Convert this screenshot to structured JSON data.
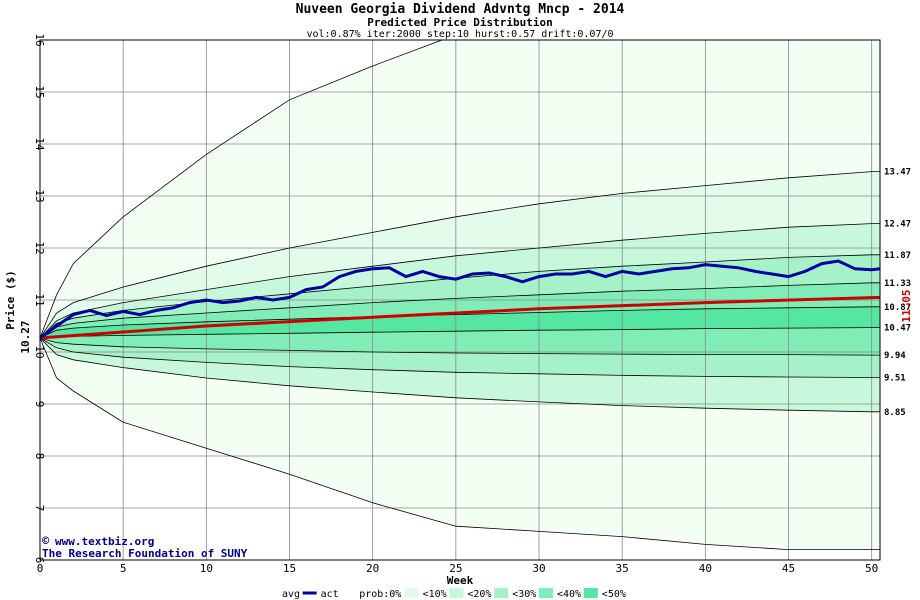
{
  "header": {
    "title": "Nuveen Georgia Dividend Advntg Mncp - 2014",
    "subtitle": "Predicted Price Distribution",
    "params": "vol:0.87% iter:2000 step:10 hurst:0.57 drift:0.07/0"
  },
  "credits": {
    "site": "www.textbiz.org",
    "org": "The Research Foundation of SUNY"
  },
  "colors": {
    "band0": "#f4fff4",
    "band10": "#e3fbea",
    "band20": "#c8f8dc",
    "band30": "#a6f2c8",
    "band40": "#80edb7",
    "band50": "#55e6a1",
    "act": "#0000a0",
    "avg": "#cc0000",
    "grid": "#888888"
  },
  "chart_data": {
    "type": "area",
    "xlabel": "Week",
    "ylabel": "Price ($)",
    "xlim": [
      0,
      50.5
    ],
    "ylim": [
      6,
      16
    ],
    "x_ticks": [
      0,
      5,
      10,
      15,
      20,
      25,
      30,
      35,
      40,
      45,
      50
    ],
    "y_ticks": [
      6,
      7,
      8,
      9,
      10,
      11,
      12,
      13,
      14,
      15,
      16
    ],
    "start_label": "10.27",
    "end_label": "11.05",
    "right_labels": [
      "13.47",
      "12.47",
      "11.87",
      "11.33",
      "10.87",
      "10.47",
      "9.94",
      "9.51",
      "8.85"
    ],
    "weeks": [
      0,
      1,
      2,
      5,
      10,
      15,
      20,
      25,
      30,
      35,
      40,
      45,
      50,
      50.5
    ],
    "bounds": [
      {
        "name": "upper_outer",
        "values": [
          10.27,
          11.1,
          11.7,
          12.6,
          13.8,
          14.85,
          15.5,
          16.1,
          16.5,
          16.8,
          17.0,
          17.2,
          17.4,
          17.4
        ]
      },
      {
        "name": "p10_upper",
        "values": [
          10.27,
          10.75,
          10.95,
          11.25,
          11.65,
          12.0,
          12.3,
          12.6,
          12.85,
          13.05,
          13.2,
          13.35,
          13.47,
          13.47
        ]
      },
      {
        "name": "p20_upper",
        "values": [
          10.27,
          10.6,
          10.75,
          10.95,
          11.2,
          11.45,
          11.65,
          11.85,
          12.0,
          12.15,
          12.28,
          12.4,
          12.47,
          12.47
        ]
      },
      {
        "name": "p30_upper",
        "values": [
          10.27,
          10.55,
          10.65,
          10.8,
          10.97,
          11.12,
          11.27,
          11.42,
          11.55,
          11.65,
          11.73,
          11.82,
          11.87,
          11.87
        ]
      },
      {
        "name": "p40_upper",
        "values": [
          10.27,
          10.48,
          10.55,
          10.65,
          10.75,
          10.85,
          10.95,
          11.03,
          11.1,
          11.17,
          11.22,
          11.28,
          11.33,
          11.33
        ]
      },
      {
        "name": "p50_upper",
        "values": [
          10.27,
          10.42,
          10.46,
          10.52,
          10.58,
          10.63,
          10.68,
          10.72,
          10.76,
          10.8,
          10.83,
          10.85,
          10.87,
          10.87
        ]
      },
      {
        "name": "p50_lower",
        "values": [
          10.27,
          10.3,
          10.3,
          10.32,
          10.34,
          10.36,
          10.38,
          10.4,
          10.42,
          10.43,
          10.45,
          10.46,
          10.47,
          10.47
        ]
      },
      {
        "name": "p40_lower",
        "values": [
          10.27,
          10.18,
          10.15,
          10.1,
          10.06,
          10.03,
          10.0,
          9.98,
          9.97,
          9.96,
          9.95,
          9.95,
          9.94,
          9.94
        ]
      },
      {
        "name": "p30_lower",
        "values": [
          10.27,
          10.08,
          10.0,
          9.9,
          9.8,
          9.72,
          9.66,
          9.61,
          9.58,
          9.55,
          9.53,
          9.52,
          9.51,
          9.51
        ]
      },
      {
        "name": "p20_lower",
        "values": [
          10.27,
          9.95,
          9.85,
          9.7,
          9.5,
          9.35,
          9.23,
          9.12,
          9.04,
          8.97,
          8.92,
          8.88,
          8.85,
          8.85
        ]
      },
      {
        "name": "lower_outer",
        "values": [
          10.27,
          9.5,
          9.25,
          8.65,
          8.15,
          7.65,
          7.1,
          6.65,
          6.55,
          6.45,
          6.3,
          6.2,
          6.2,
          6.2
        ]
      }
    ],
    "avg_line": {
      "name": "avg",
      "x": [
        0,
        10,
        20,
        30,
        40,
        50.5
      ],
      "y": [
        10.27,
        10.5,
        10.67,
        10.83,
        10.95,
        11.05
      ]
    },
    "act_line": {
      "name": "act",
      "x": [
        0,
        1,
        2,
        3,
        4,
        5,
        6,
        7,
        8,
        9,
        10,
        11,
        12,
        13,
        14,
        15,
        16,
        17,
        18,
        19,
        20,
        21,
        22,
        23,
        24,
        25,
        26,
        27,
        28,
        29,
        30,
        31,
        32,
        33,
        34,
        35,
        36,
        37,
        38,
        39,
        40,
        41,
        42,
        43,
        44,
        45,
        46,
        47,
        48,
        49,
        50,
        50.5
      ],
      "y": [
        10.27,
        10.5,
        10.72,
        10.8,
        10.7,
        10.78,
        10.72,
        10.8,
        10.85,
        10.95,
        11.0,
        10.95,
        10.98,
        11.05,
        11.0,
        11.05,
        11.2,
        11.25,
        11.45,
        11.55,
        11.6,
        11.62,
        11.45,
        11.55,
        11.45,
        11.4,
        11.5,
        11.52,
        11.45,
        11.35,
        11.45,
        11.5,
        11.5,
        11.55,
        11.45,
        11.55,
        11.5,
        11.55,
        11.6,
        11.62,
        11.68,
        11.65,
        11.62,
        11.55,
        11.5,
        11.45,
        11.55,
        11.7,
        11.75,
        11.6,
        11.58,
        11.6
      ]
    },
    "legend": {
      "placement": "bottom",
      "items": [
        "avg",
        "act",
        "prob:0%",
        "<10%",
        "<20%",
        "<30%",
        "<40%",
        "<50%"
      ]
    }
  }
}
